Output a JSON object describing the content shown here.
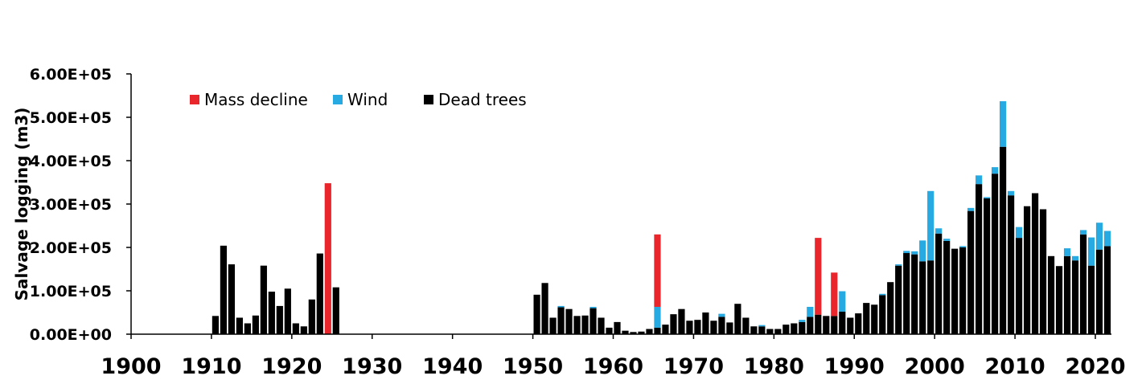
{
  "chart_data": {
    "type": "bar",
    "stacked": true,
    "title": "",
    "xlabel": "",
    "ylabel": "Salvage logging (m3)",
    "xlim": [
      1900,
      2022
    ],
    "ylim": [
      0,
      600000
    ],
    "y_ticks": [
      "0.00E+00",
      "1.00E+05",
      "2.00E+05",
      "3.00E+05",
      "4.00E+05",
      "5.00E+05",
      "6.00E+05"
    ],
    "x_ticks": [
      "1900",
      "1910",
      "1920",
      "1930",
      "1940",
      "1950",
      "1960",
      "1970",
      "1980",
      "1990",
      "2000",
      "2010",
      "2020"
    ],
    "grid": false,
    "legend_position": "top-left",
    "colors": {
      "Mass decline": "#e8262b",
      "Wind": "#27a9e1",
      "Dead trees": "#000000"
    },
    "legend": [
      "Mass decline",
      "Wind",
      "Dead trees"
    ],
    "years": [
      1910,
      1911,
      1912,
      1913,
      1914,
      1915,
      1916,
      1917,
      1918,
      1919,
      1920,
      1921,
      1922,
      1923,
      1924,
      1925,
      1950,
      1951,
      1952,
      1953,
      1954,
      1955,
      1956,
      1957,
      1958,
      1959,
      1960,
      1961,
      1962,
      1963,
      1964,
      1965,
      1966,
      1967,
      1968,
      1969,
      1970,
      1971,
      1972,
      1973,
      1974,
      1975,
      1976,
      1977,
      1978,
      1979,
      1980,
      1981,
      1982,
      1983,
      1984,
      1985,
      1986,
      1987,
      1988,
      1989,
      1990,
      1991,
      1992,
      1993,
      1994,
      1995,
      1996,
      1997,
      1998,
      1999,
      2000,
      2001,
      2002,
      2003,
      2004,
      2005,
      2006,
      2007,
      2008,
      2009,
      2010,
      2011,
      2012,
      2013,
      2014,
      2015,
      2016,
      2017,
      2018,
      2019,
      2020,
      2021
    ],
    "series": [
      {
        "name": "Dead trees",
        "values": [
          42000,
          204000,
          161000,
          38000,
          25000,
          43000,
          158000,
          98000,
          65000,
          105000,
          25000,
          18000,
          80000,
          186000,
          0,
          108000,
          91000,
          118000,
          38000,
          62000,
          58000,
          42000,
          43000,
          60000,
          38000,
          15000,
          28000,
          8000,
          5000,
          6000,
          12000,
          15000,
          22000,
          46000,
          58000,
          31000,
          33000,
          50000,
          31000,
          40000,
          27000,
          70000,
          38000,
          18000,
          18000,
          12000,
          12000,
          22000,
          25000,
          28000,
          40000,
          45000,
          42000,
          42000,
          52000,
          38000,
          48000,
          72000,
          68000,
          90000,
          120000,
          158000,
          187000,
          184000,
          168000,
          170000,
          232000,
          215000,
          197000,
          200000,
          284000,
          346000,
          313000,
          370000,
          432000,
          320000,
          222000,
          295000,
          325000,
          288000,
          180000,
          157000,
          180000,
          170000,
          230000,
          158000,
          195000,
          203000
        ]
      },
      {
        "name": "Wind",
        "values": [
          0,
          0,
          0,
          0,
          0,
          0,
          0,
          0,
          0,
          0,
          0,
          0,
          0,
          0,
          0,
          0,
          0,
          0,
          0,
          3000,
          0,
          0,
          0,
          3000,
          0,
          0,
          0,
          0,
          0,
          0,
          0,
          48000,
          0,
          0,
          0,
          0,
          0,
          0,
          0,
          7000,
          0,
          0,
          0,
          0,
          3000,
          0,
          0,
          0,
          0,
          5000,
          23000,
          0,
          0,
          0,
          47000,
          0,
          0,
          0,
          0,
          3000,
          0,
          3000,
          5000,
          7000,
          48000,
          160000,
          12000,
          5000,
          0,
          3000,
          7000,
          20000,
          3000,
          15000,
          105000,
          10000,
          25000,
          0,
          0,
          0,
          0,
          0,
          18000,
          10000,
          10000,
          65000,
          62000,
          35000
        ]
      },
      {
        "name": "Mass decline",
        "values": [
          0,
          0,
          0,
          0,
          0,
          0,
          0,
          0,
          0,
          0,
          0,
          0,
          0,
          0,
          348000,
          0,
          0,
          0,
          0,
          0,
          0,
          0,
          0,
          0,
          0,
          0,
          0,
          0,
          0,
          0,
          0,
          167000,
          0,
          0,
          0,
          0,
          0,
          0,
          0,
          0,
          0,
          0,
          0,
          0,
          0,
          0,
          0,
          0,
          0,
          0,
          0,
          177000,
          0,
          100000,
          0,
          0,
          0,
          0,
          0,
          0,
          0,
          0,
          0,
          0,
          0,
          0,
          0,
          0,
          0,
          0,
          0,
          0,
          0,
          0,
          0,
          0,
          0,
          0,
          0,
          0,
          0,
          0,
          0,
          0,
          0,
          0,
          0,
          0
        ]
      }
    ]
  }
}
